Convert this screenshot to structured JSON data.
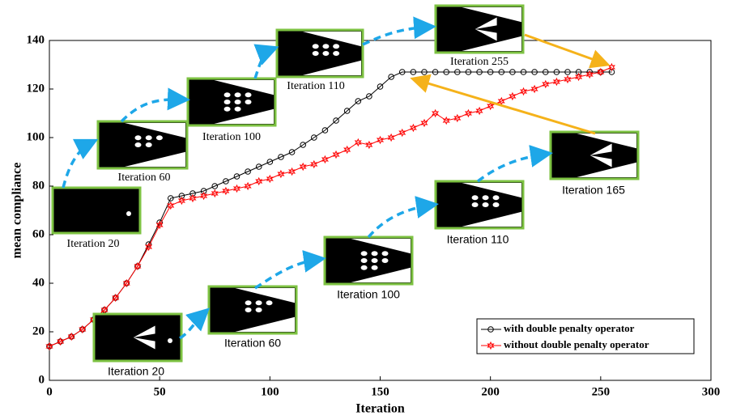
{
  "chart_data": {
    "type": "line",
    "x_label": "Iteration",
    "y_label": "mean compliance",
    "x": [
      0,
      5,
      10,
      15,
      20,
      25,
      30,
      35,
      40,
      45,
      50,
      55,
      60,
      65,
      70,
      75,
      80,
      85,
      90,
      95,
      100,
      105,
      110,
      115,
      120,
      125,
      130,
      135,
      140,
      145,
      150,
      155,
      160,
      165,
      170,
      175,
      180,
      185,
      190,
      195,
      200,
      205,
      210,
      215,
      220,
      225,
      230,
      235,
      240,
      245,
      250,
      255
    ],
    "series": [
      {
        "name": "with double penalty operator",
        "color": "#000000",
        "marker": "circle",
        "values": [
          14,
          16,
          18,
          21,
          25,
          29,
          34,
          40,
          47,
          56,
          65,
          75,
          76,
          77,
          78,
          80,
          82,
          84,
          86,
          88,
          90,
          92,
          94,
          97,
          100,
          103,
          107,
          111,
          115,
          117,
          121,
          125,
          127,
          127,
          127,
          127,
          127,
          127,
          127,
          127,
          127,
          127,
          127,
          127,
          127,
          127,
          127,
          127,
          127,
          127,
          127,
          127
        ]
      },
      {
        "name": "without double penalty operator",
        "color": "#ff0000",
        "marker": "star",
        "values": [
          14,
          16,
          18,
          21,
          25,
          29,
          34,
          40,
          47,
          55,
          64,
          72,
          74,
          75,
          76,
          77,
          78,
          79,
          80,
          82,
          83,
          85,
          86,
          88,
          89,
          91,
          93,
          95,
          98,
          97,
          99,
          100,
          102,
          104,
          106,
          110,
          107,
          108,
          110,
          111,
          113,
          115,
          117,
          119,
          120,
          122,
          123,
          124,
          125,
          126,
          127,
          129
        ]
      }
    ],
    "xlim": [
      0,
      300
    ],
    "xticks": [
      0,
      50,
      100,
      150,
      200,
      250,
      300
    ],
    "ylim": [
      0,
      140
    ],
    "yticks": [
      0,
      20,
      40,
      60,
      80,
      100,
      120,
      140
    ],
    "legend": "lower right",
    "insets": [
      {
        "label": "Iteration 20"
      },
      {
        "label": "Iteration 60"
      },
      {
        "label": "Iteration 100"
      },
      {
        "label": "Iteration 110"
      },
      {
        "label": "Iteration 255"
      },
      {
        "label": "Iteration 20"
      },
      {
        "label": "Iteration 60"
      },
      {
        "label": "Iteration 100"
      },
      {
        "label": "Iteration 110"
      },
      {
        "label": "Iteration 165"
      }
    ]
  }
}
